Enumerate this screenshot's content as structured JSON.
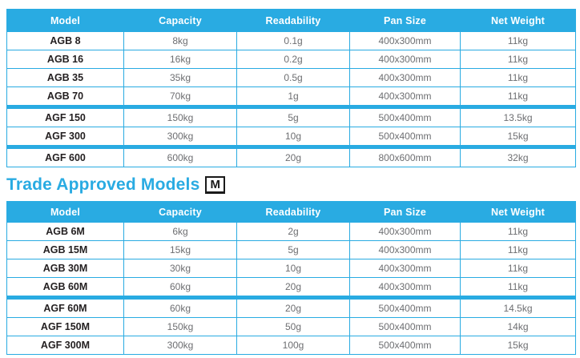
{
  "colors": {
    "accent_blue": "#29abe2",
    "header_text": "#ffffff",
    "model_text": "#231f20",
    "cell_text": "#6d6e71",
    "mark_black": "#1a1a1a"
  },
  "standard_table": {
    "headers": [
      "Model",
      "Capacity",
      "Readability",
      "Pan Size",
      "Net Weight"
    ],
    "rows": [
      [
        "AGB 8",
        "8kg",
        "0.1g",
        "400x300mm",
        "11kg"
      ],
      [
        "AGB 16",
        "16kg",
        "0.2g",
        "400x300mm",
        "11kg"
      ],
      [
        "AGB 35",
        "35kg",
        "0.5g",
        "400x300mm",
        "11kg"
      ],
      [
        "AGB 70",
        "70kg",
        "1g",
        "400x300mm",
        "11kg"
      ],
      [
        "AGF 150",
        "150kg",
        "5g",
        "500x400mm",
        "13.5kg"
      ],
      [
        "AGF 300",
        "300kg",
        "10g",
        "500x400mm",
        "15kg"
      ],
      [
        "AGF 600",
        "600kg",
        "20g",
        "800x600mm",
        "32kg"
      ]
    ]
  },
  "heading": {
    "title": "Trade Approved Models",
    "mark": "M"
  },
  "trade_table": {
    "headers": [
      "Model",
      "Capacity",
      "Readability",
      "Pan Size",
      "Net Weight"
    ],
    "rows": [
      [
        "AGB 6M",
        "6kg",
        "2g",
        "400x300mm",
        "11kg"
      ],
      [
        "AGB 15M",
        "15kg",
        "5g",
        "400x300mm",
        "11kg"
      ],
      [
        "AGB 30M",
        "30kg",
        "10g",
        "400x300mm",
        "11kg"
      ],
      [
        "AGB 60M",
        "60kg",
        "20g",
        "400x300mm",
        "11kg"
      ],
      [
        "AGF 60M",
        "60kg",
        "20g",
        "500x400mm",
        "14.5kg"
      ],
      [
        "AGF 150M",
        "150kg",
        "50g",
        "500x400mm",
        "14kg"
      ],
      [
        "AGF 300M",
        "300kg",
        "100g",
        "500x400mm",
        "15kg"
      ]
    ]
  }
}
